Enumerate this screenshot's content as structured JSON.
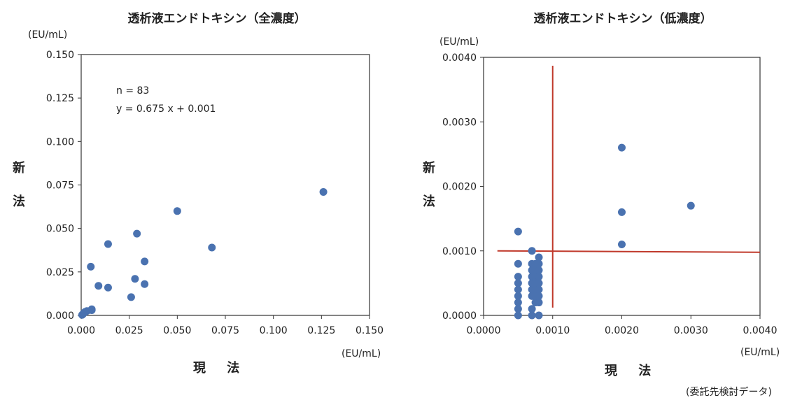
{
  "chart_data": [
    {
      "type": "scatter",
      "title": "透析液エンドトキシン（全濃度）",
      "xlabel": "現 法",
      "ylabel": "新 法",
      "x_unit": "(EU/mL)",
      "y_unit": "(EU/mL)",
      "xlim": [
        0,
        0.15
      ],
      "ylim": [
        0,
        0.15
      ],
      "x_ticks": [
        "0.000",
        "0.025",
        "0.050",
        "0.075",
        "0.100",
        "0.125",
        "0.150"
      ],
      "y_ticks": [
        "0.000",
        "0.025",
        "0.050",
        "0.075",
        "0.100",
        "0.125",
        "0.150"
      ],
      "annotation": [
        "n = 83",
        "y = 0.675 x + 0.001"
      ],
      "marker_color": "#4a72b0",
      "points": [
        [
          0.0005,
          0.0003
        ],
        [
          0.001,
          0.0008
        ],
        [
          0.0015,
          0.0015
        ],
        [
          0.002,
          0.002
        ],
        [
          0.003,
          0.0025
        ],
        [
          0.0055,
          0.003
        ],
        [
          0.0055,
          0.0035
        ],
        [
          0.005,
          0.028
        ],
        [
          0.009,
          0.017
        ],
        [
          0.014,
          0.041
        ],
        [
          0.014,
          0.016
        ],
        [
          0.026,
          0.0105
        ],
        [
          0.028,
          0.021
        ],
        [
          0.029,
          0.047
        ],
        [
          0.033,
          0.031
        ],
        [
          0.033,
          0.018
        ],
        [
          0.05,
          0.06
        ],
        [
          0.068,
          0.039
        ],
        [
          0.126,
          0.071
        ]
      ]
    },
    {
      "type": "scatter",
      "title": "透析液エンドトキシン（低濃度）",
      "xlabel": "現 法",
      "ylabel": "新 法",
      "x_unit": "(EU/mL)",
      "y_unit": "(EU/mL)",
      "xlim": [
        0,
        0.004
      ],
      "ylim": [
        0,
        0.004
      ],
      "x_ticks": [
        "0.0000",
        "0.0010",
        "0.0020",
        "0.0030",
        "0.0040"
      ],
      "y_ticks": [
        "0.0000",
        "0.0010",
        "0.0020",
        "0.0030",
        "0.0040"
      ],
      "marker_color": "#4a72b0",
      "reference_lines": {
        "x": 0.001,
        "y": 0.001,
        "color": "#c0392b"
      },
      "points": [
        [
          0.0005,
          0.0013
        ],
        [
          0.0005,
          0.0008
        ],
        [
          0.0005,
          0.0006
        ],
        [
          0.0005,
          0.0005
        ],
        [
          0.0005,
          0.0004
        ],
        [
          0.0005,
          0.0003
        ],
        [
          0.0005,
          0.0002
        ],
        [
          0.0005,
          0.0001
        ],
        [
          0.0005,
          0.0
        ],
        [
          0.0007,
          0.001
        ],
        [
          0.0007,
          0.0008
        ],
        [
          0.0007,
          0.0007
        ],
        [
          0.0007,
          0.0006
        ],
        [
          0.0007,
          0.0005
        ],
        [
          0.0007,
          0.0004
        ],
        [
          0.0007,
          0.0003
        ],
        [
          0.0007,
          0.0001
        ],
        [
          0.0007,
          0.0
        ],
        [
          0.00075,
          0.0008
        ],
        [
          0.00075,
          0.0007
        ],
        [
          0.00075,
          0.0006
        ],
        [
          0.00075,
          0.0005
        ],
        [
          0.00075,
          0.0004
        ],
        [
          0.00075,
          0.0003
        ],
        [
          0.00075,
          0.0002
        ],
        [
          0.0008,
          0.0009
        ],
        [
          0.0008,
          0.0008
        ],
        [
          0.0008,
          0.0007
        ],
        [
          0.0008,
          0.0006
        ],
        [
          0.0008,
          0.0005
        ],
        [
          0.0008,
          0.0004
        ],
        [
          0.0008,
          0.0003
        ],
        [
          0.0008,
          0.0002
        ],
        [
          0.0008,
          0.0
        ],
        [
          0.002,
          0.0026
        ],
        [
          0.002,
          0.0016
        ],
        [
          0.002,
          0.0011
        ],
        [
          0.003,
          0.0017
        ]
      ]
    }
  ],
  "credit": "(委託先検討データ)"
}
